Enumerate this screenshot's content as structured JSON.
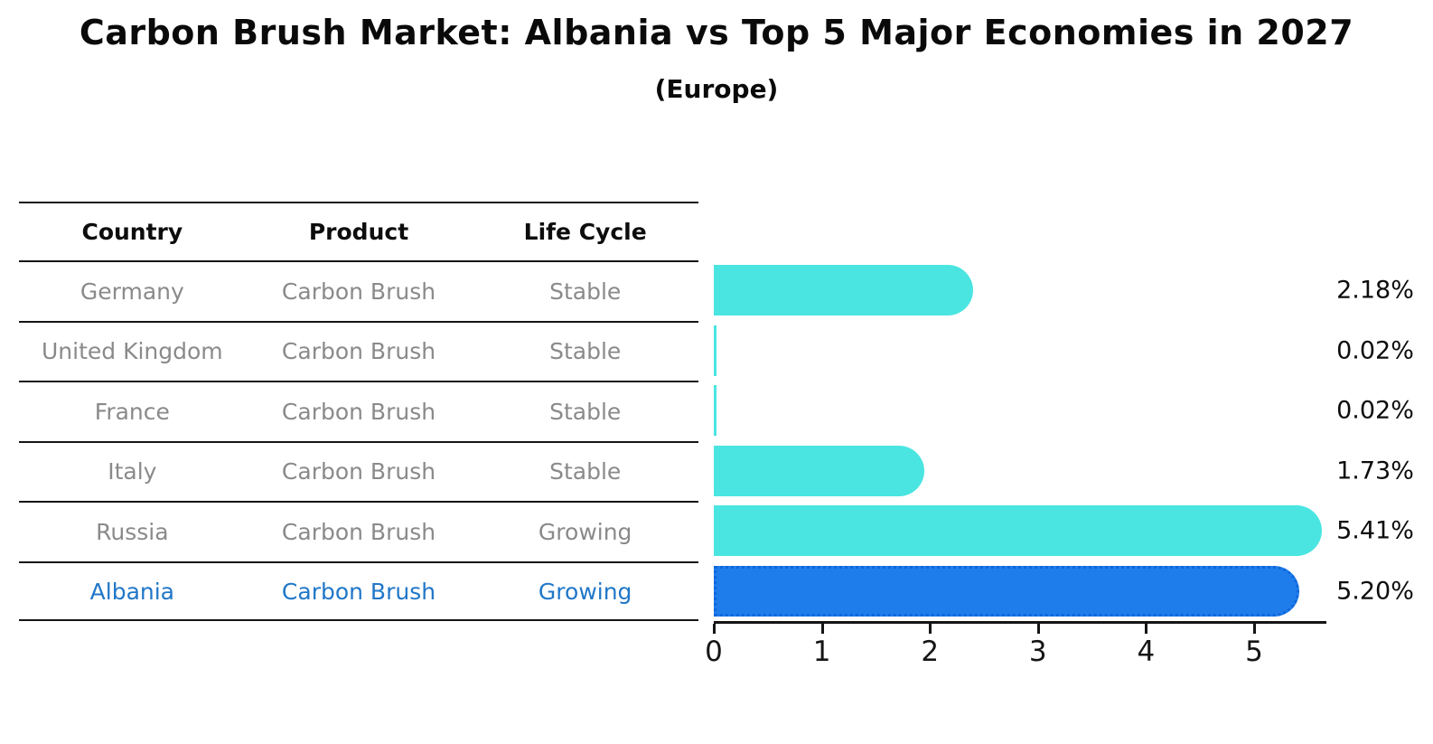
{
  "title": "Carbon Brush Market: Albania vs Top 5 Major Economies in 2027",
  "subtitle": "(Europe)",
  "colors": {
    "bar_default": "#4AE5E1",
    "bar_highlight": "#1E7DEB",
    "bar_highlight_border": "#1166DB",
    "table_text_muted": "#8a8a8a",
    "table_text_highlight": "#2077C8",
    "line": "#151515",
    "text": "#0A0A0A"
  },
  "table": {
    "headers": [
      "Country",
      "Product",
      "Life Cycle"
    ],
    "rows": [
      {
        "country": "Germany",
        "product": "Carbon Brush",
        "life_cycle": "Stable",
        "value_label": "2.18%",
        "highlighted": false
      },
      {
        "country": "United Kingdom",
        "product": "Carbon Brush",
        "life_cycle": "Stable",
        "value_label": "0.02%",
        "highlighted": false
      },
      {
        "country": "France",
        "product": "Carbon Brush",
        "life_cycle": "Stable",
        "value_label": "0.02%",
        "highlighted": false
      },
      {
        "country": "Italy",
        "product": "Carbon Brush",
        "life_cycle": "Stable",
        "value_label": "1.73%",
        "highlighted": false
      },
      {
        "country": "Russia",
        "product": "Carbon Brush",
        "life_cycle": "Growing",
        "value_label": "5.41%",
        "highlighted": false
      },
      {
        "country": "Albania",
        "product": "Carbon Brush",
        "life_cycle": "Growing",
        "value_label": "5.20%",
        "highlighted": true
      }
    ]
  },
  "chart_data": {
    "type": "bar",
    "orientation": "horizontal",
    "title": "Carbon Brush Market: Albania vs Top 5 Major Economies in 2027",
    "subtitle": "(Europe)",
    "categories": [
      "Germany",
      "United Kingdom",
      "France",
      "Italy",
      "Russia",
      "Albania"
    ],
    "values": [
      2.18,
      0.02,
      0.02,
      1.73,
      5.41,
      5.2
    ],
    "value_labels": [
      "2.18%",
      "0.02%",
      "0.02%",
      "1.73%",
      "5.41%",
      "5.20%"
    ],
    "xlabel": "",
    "ylabel": "",
    "xlim": [
      0,
      5.65
    ],
    "xticks": [
      0,
      1,
      2,
      3,
      4,
      5
    ],
    "grid": false,
    "legend": false,
    "highlight_category": "Albania",
    "bar_color": "#4AE5E1",
    "highlight_color": "#1E7DEB"
  }
}
